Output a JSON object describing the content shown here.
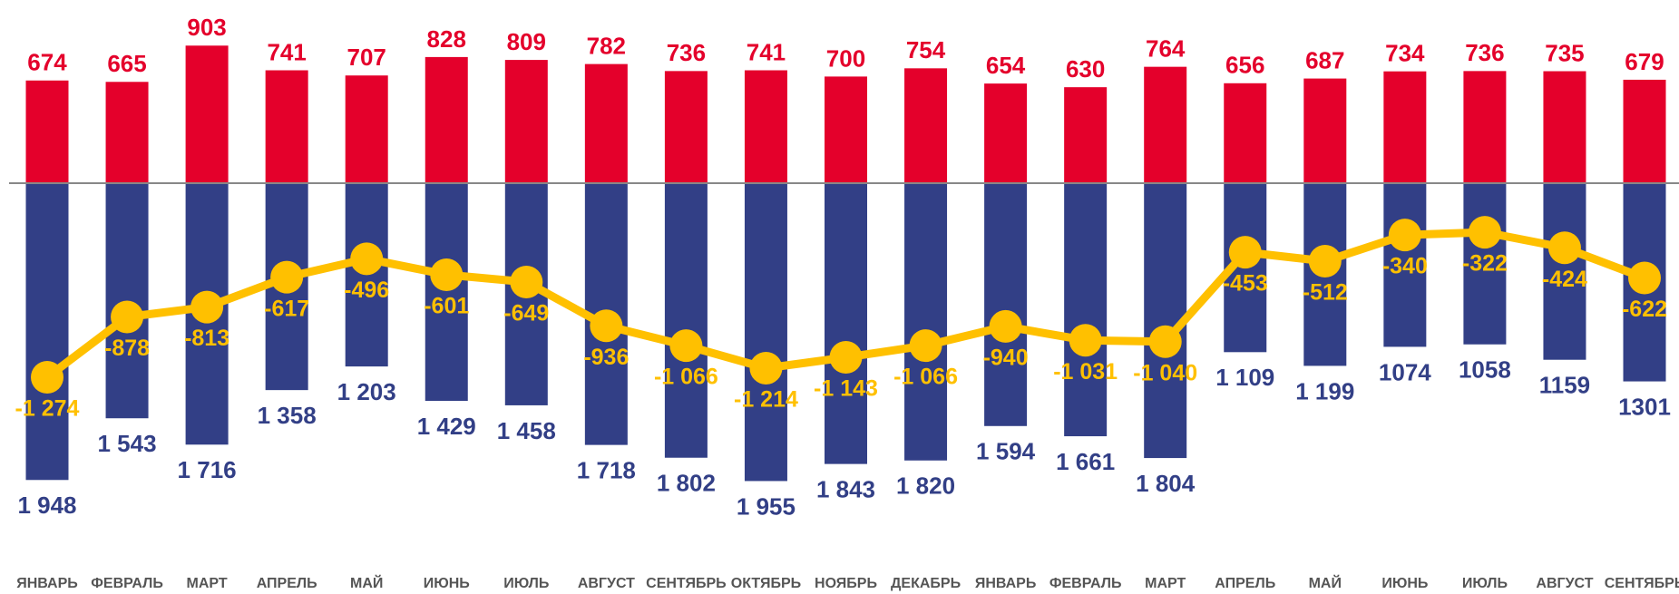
{
  "chart_data": {
    "type": "bar_line",
    "categories": [
      "ЯНВАРЬ",
      "ФЕВРАЛЬ",
      "МАРТ",
      "АПРЕЛЬ",
      "МАЙ",
      "ИЮНЬ",
      "ИЮЛЬ",
      "АВГУСТ",
      "СЕНТЯБРЬ",
      "ОКТЯБРЬ",
      "НОЯБРЬ",
      "ДЕКАБРЬ",
      "ЯНВАРЬ",
      "ФЕВРАЛЬ",
      "МАРТ",
      "АПРЕЛЬ",
      "МАЙ",
      "ИЮНЬ",
      "ИЮЛЬ",
      "АВГУСТ",
      "СЕНТЯБРЬ"
    ],
    "series": [
      {
        "color": "#e4002b",
        "values": [
          674,
          665,
          903,
          741,
          707,
          828,
          809,
          782,
          736,
          741,
          700,
          754,
          654,
          630,
          764,
          656,
          687,
          734,
          736,
          735,
          679
        ]
      },
      {
        "color": "#323f86",
        "values": [
          1948,
          1543,
          1716,
          1358,
          1203,
          1429,
          1458,
          1718,
          1802,
          1955,
          1843,
          1820,
          1594,
          1661,
          1804,
          1109,
          1199,
          1074,
          1058,
          1159,
          1301
        ],
        "value_labels": [
          "1 948",
          "1 543",
          "1 716",
          "1 358",
          "1 203",
          "1 429",
          "1 458",
          "1 718",
          "1 802",
          "1 955",
          "1 843",
          "1 820",
          "1 594",
          "1 661",
          "1 804",
          "1 109",
          "1 199",
          "1074",
          "1058",
          "1159",
          "1301"
        ]
      },
      {
        "color": "#ffc000",
        "values": [
          -1274,
          -878,
          -813,
          -617,
          -496,
          -601,
          -649,
          -936,
          -1066,
          -1214,
          -1143,
          -1066,
          -940,
          -1031,
          -1040,
          -453,
          -512,
          -340,
          -322,
          -424,
          -622
        ],
        "value_labels": [
          "-1 274",
          "-878",
          "-813",
          "-617",
          "-496",
          "-601",
          "-649",
          "-936",
          "-1 066",
          "-1 214",
          "-1 143",
          "-1 066",
          "-940",
          "-1 031",
          "-1 040",
          "-453",
          "-512",
          "-340",
          "-322",
          "-424",
          "-622"
        ]
      }
    ]
  }
}
